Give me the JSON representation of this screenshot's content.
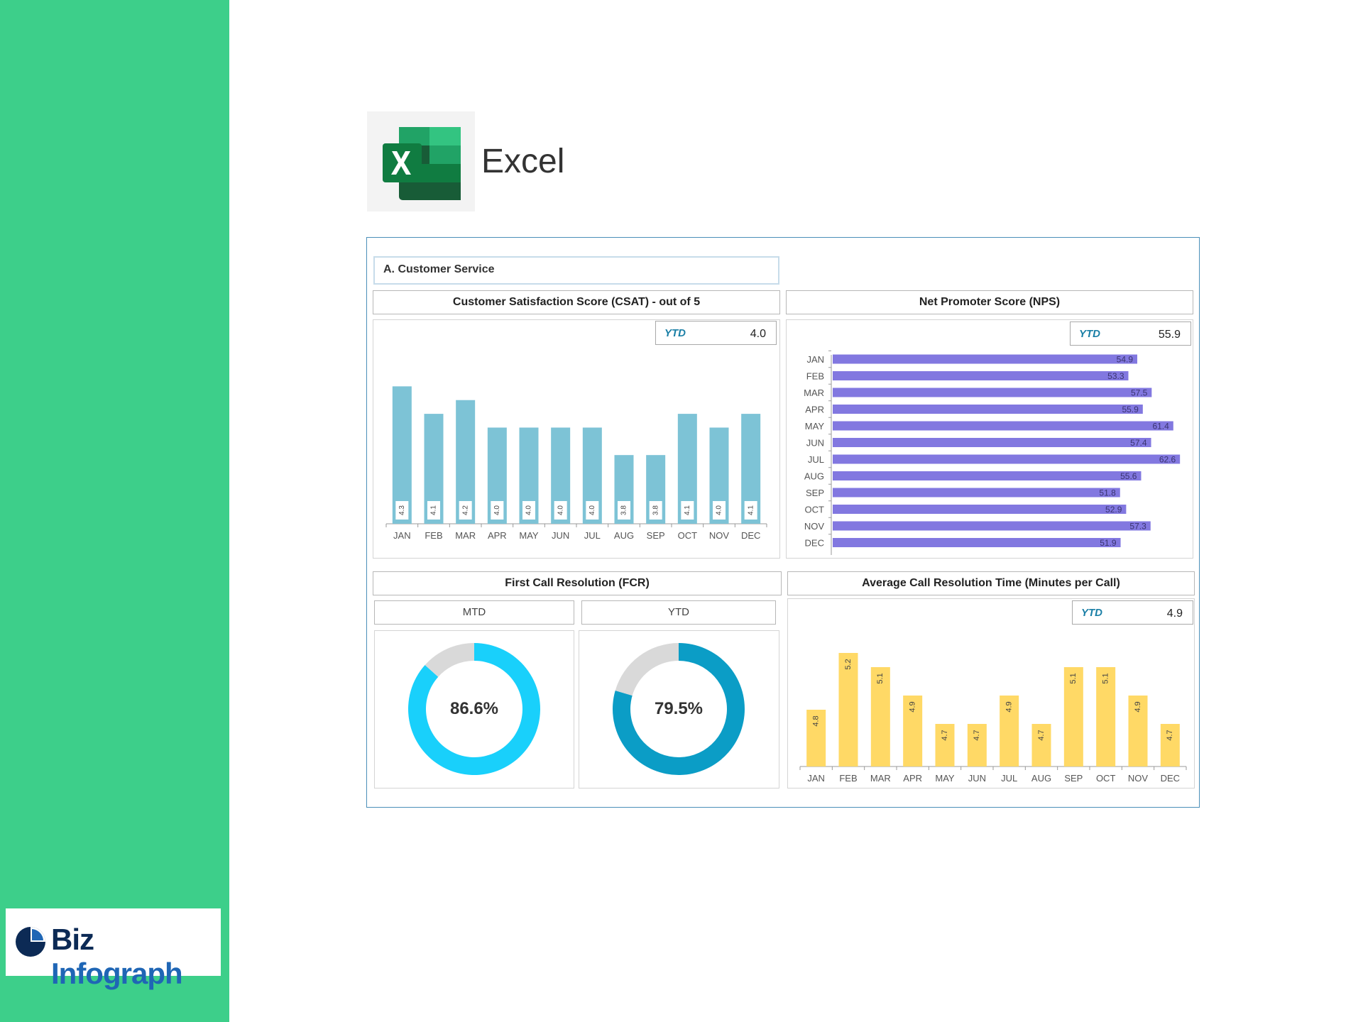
{
  "app": {
    "label": "Excel",
    "icon": "excel-icon"
  },
  "brand": {
    "part1": "Biz",
    "part2": "Infograph",
    "logo_icon": "pie-logo-icon",
    "accent": "#1f66b5"
  },
  "dashboard": {
    "section_title": "A. Customer Service",
    "csat": {
      "title": "Customer Satisfaction Score (CSAT) - out of 5",
      "ytd_label": "YTD",
      "ytd_value": "4.0"
    },
    "nps": {
      "title": "Net Promoter Score (NPS)",
      "ytd_label": "YTD",
      "ytd_value": "55.9"
    },
    "fcr": {
      "title": "First Call Resolution (FCR)",
      "mtd_label": "MTD",
      "ytd_label": "YTD",
      "mtd_value": "86.6%",
      "ytd_value": "79.5%"
    },
    "act": {
      "title": "Average Call Resolution Time (Minutes per Call)",
      "ytd_label": "YTD",
      "ytd_value": "4.9"
    }
  },
  "chart_data": [
    {
      "id": "csat",
      "type": "bar",
      "categories": [
        "JAN",
        "FEB",
        "MAR",
        "APR",
        "MAY",
        "JUN",
        "JUL",
        "AUG",
        "SEP",
        "OCT",
        "NOV",
        "DEC"
      ],
      "values": [
        4.3,
        4.1,
        4.2,
        4.0,
        4.0,
        4.0,
        4.0,
        3.8,
        3.8,
        4.1,
        4.0,
        4.1
      ],
      "labels": [
        "4.3",
        "4.1",
        "4.2",
        "4.0",
        "4.0",
        "4.0",
        "4.0",
        "3.8",
        "3.8",
        "4.1",
        "4.0",
        "4.1"
      ],
      "ylim": [
        3.3,
        4.4
      ],
      "color": "#7dc3d6",
      "grid": false
    },
    {
      "id": "nps",
      "type": "bar",
      "orientation": "horizontal",
      "categories": [
        "JAN",
        "FEB",
        "MAR",
        "APR",
        "MAY",
        "JUN",
        "JUL",
        "AUG",
        "SEP",
        "OCT",
        "NOV",
        "DEC"
      ],
      "values": [
        54.9,
        53.3,
        57.5,
        55.9,
        61.4,
        57.4,
        62.6,
        55.6,
        51.8,
        52.9,
        57.3,
        51.9
      ],
      "labels": [
        "54.9",
        "53.3",
        "57.5",
        "55.9",
        "61.4",
        "57.4",
        "62.6",
        "55.6",
        "51.8",
        "52.9",
        "57.3",
        "51.9"
      ],
      "xlim": [
        0,
        70
      ],
      "color": "#8278e0",
      "grid": false
    },
    {
      "id": "fcr_mtd",
      "type": "pie",
      "values": [
        86.6,
        13.4
      ],
      "colors": [
        "#19d0fb",
        "#d9d9d9"
      ]
    },
    {
      "id": "fcr_ytd",
      "type": "pie",
      "values": [
        79.5,
        20.5
      ],
      "colors": [
        "#0b9dc6",
        "#d9d9d9"
      ]
    },
    {
      "id": "act",
      "type": "bar",
      "categories": [
        "JAN",
        "FEB",
        "MAR",
        "APR",
        "MAY",
        "JUN",
        "JUL",
        "AUG",
        "SEP",
        "OCT",
        "NOV",
        "DEC"
      ],
      "values": [
        4.8,
        5.2,
        5.1,
        4.9,
        4.7,
        4.7,
        4.9,
        4.7,
        5.1,
        5.1,
        4.9,
        4.7
      ],
      "labels": [
        "4.8",
        "5.2",
        "5.1",
        "4.9",
        "4.7",
        "4.7",
        "4.9",
        "4.7",
        "5.1",
        "5.1",
        "4.9",
        "4.7"
      ],
      "ylim": [
        4.4,
        5.3
      ],
      "color": "#ffd966",
      "grid": false
    }
  ]
}
